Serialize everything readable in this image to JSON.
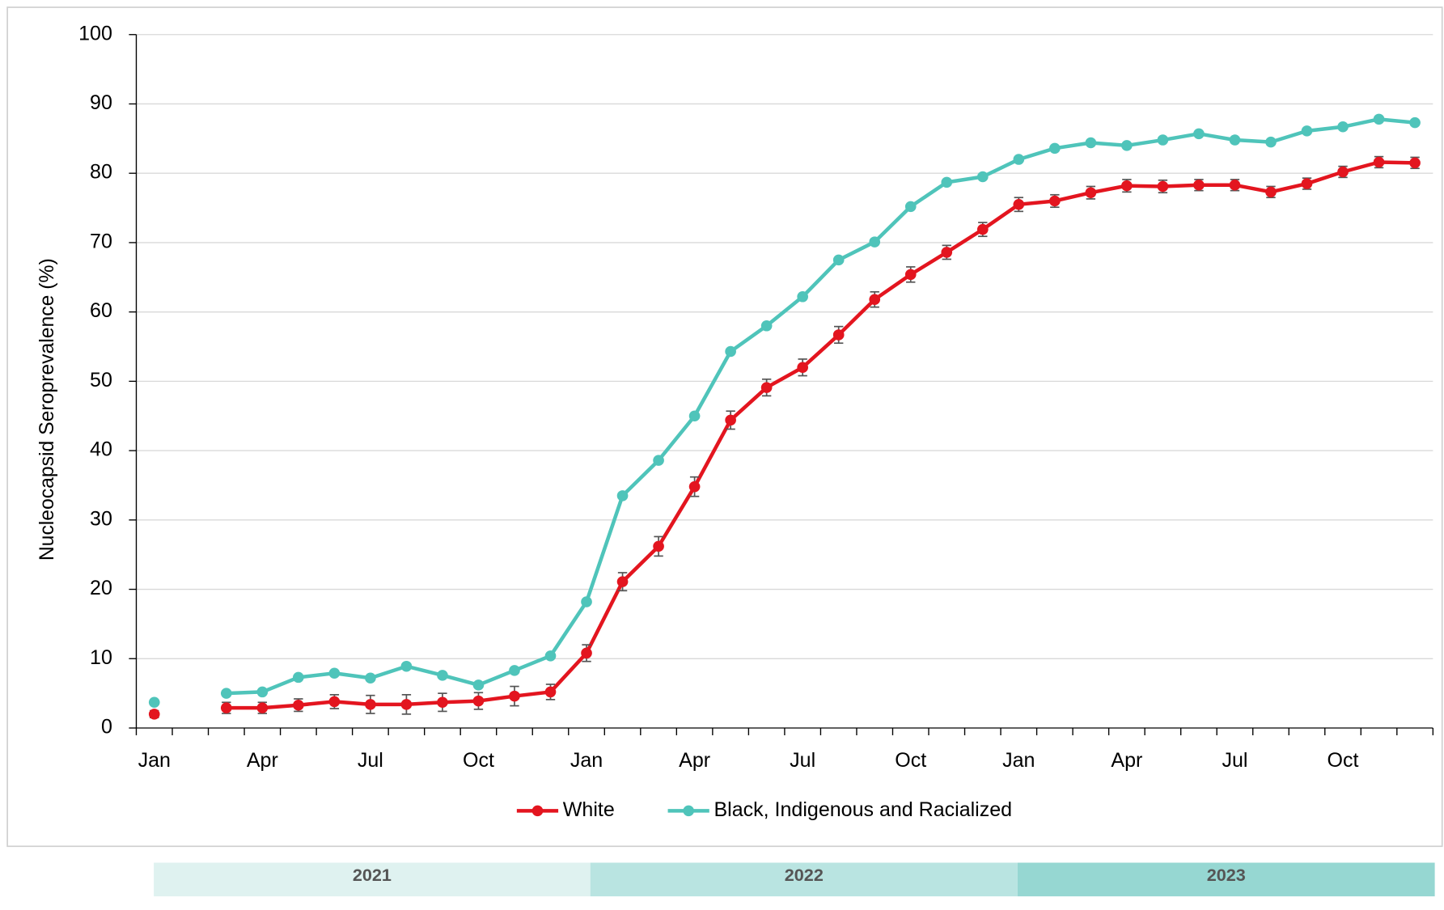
{
  "chart_data": {
    "type": "line",
    "y_label": "Nucleocapsid Seroprevalence (%)",
    "categories": [
      "Jan",
      null,
      null,
      "Apr",
      null,
      null,
      "Jul",
      null,
      null,
      "Oct",
      null,
      null,
      "Jan",
      null,
      null,
      "Apr",
      null,
      null,
      "Jul",
      null,
      null,
      "Oct",
      null,
      null,
      "Jan",
      null,
      null,
      "Apr",
      null,
      null,
      "Jul",
      null,
      null,
      "Oct",
      null,
      null
    ],
    "series": [
      {
        "name": "White",
        "color": "#e3151f",
        "values": [
          2.0,
          null,
          2.9,
          2.9,
          3.3,
          3.8,
          3.4,
          3.4,
          3.7,
          3.9,
          4.6,
          5.2,
          10.8,
          21.1,
          26.2,
          34.8,
          44.4,
          49.1,
          52.0,
          56.7,
          61.8,
          65.4,
          68.6,
          71.9,
          75.5,
          76.0,
          77.2,
          78.2,
          78.1,
          78.3,
          78.3,
          77.3,
          78.5,
          80.2,
          81.6,
          81.5
        ],
        "errors": [
          0.5,
          null,
          0.8,
          0.8,
          0.9,
          1.0,
          1.3,
          1.4,
          1.3,
          1.2,
          1.4,
          1.1,
          1.2,
          1.3,
          1.4,
          1.4,
          1.3,
          1.2,
          1.2,
          1.2,
          1.1,
          1.1,
          1.0,
          1.0,
          1.0,
          0.9,
          0.9,
          0.9,
          0.9,
          0.8,
          0.8,
          0.8,
          0.8,
          0.8,
          0.8,
          0.8
        ]
      },
      {
        "name": "Black, Indigenous and Racialized",
        "color": "#4fc4ba",
        "values": [
          3.7,
          null,
          5.0,
          5.2,
          7.3,
          7.9,
          7.2,
          8.9,
          7.6,
          6.2,
          8.3,
          10.4,
          18.2,
          33.5,
          38.6,
          45.0,
          54.3,
          58.0,
          62.2,
          67.5,
          70.1,
          75.2,
          78.7,
          79.5,
          82.0,
          83.6,
          84.4,
          84.0,
          84.8,
          85.7,
          84.8,
          84.5,
          86.1,
          86.7,
          87.8,
          87.3
        ]
      }
    ],
    "ylim": [
      0,
      100
    ],
    "yticks": [
      0,
      10,
      20,
      30,
      40,
      50,
      60,
      70,
      80,
      90,
      100
    ],
    "grid": true,
    "legend": "bottom",
    "periods": [
      {
        "label": "2021",
        "color": "#dff2f0"
      },
      {
        "label": "2022",
        "color": "#b9e4e1"
      },
      {
        "label": "2023",
        "color": "#96d7d2"
      }
    ]
  }
}
